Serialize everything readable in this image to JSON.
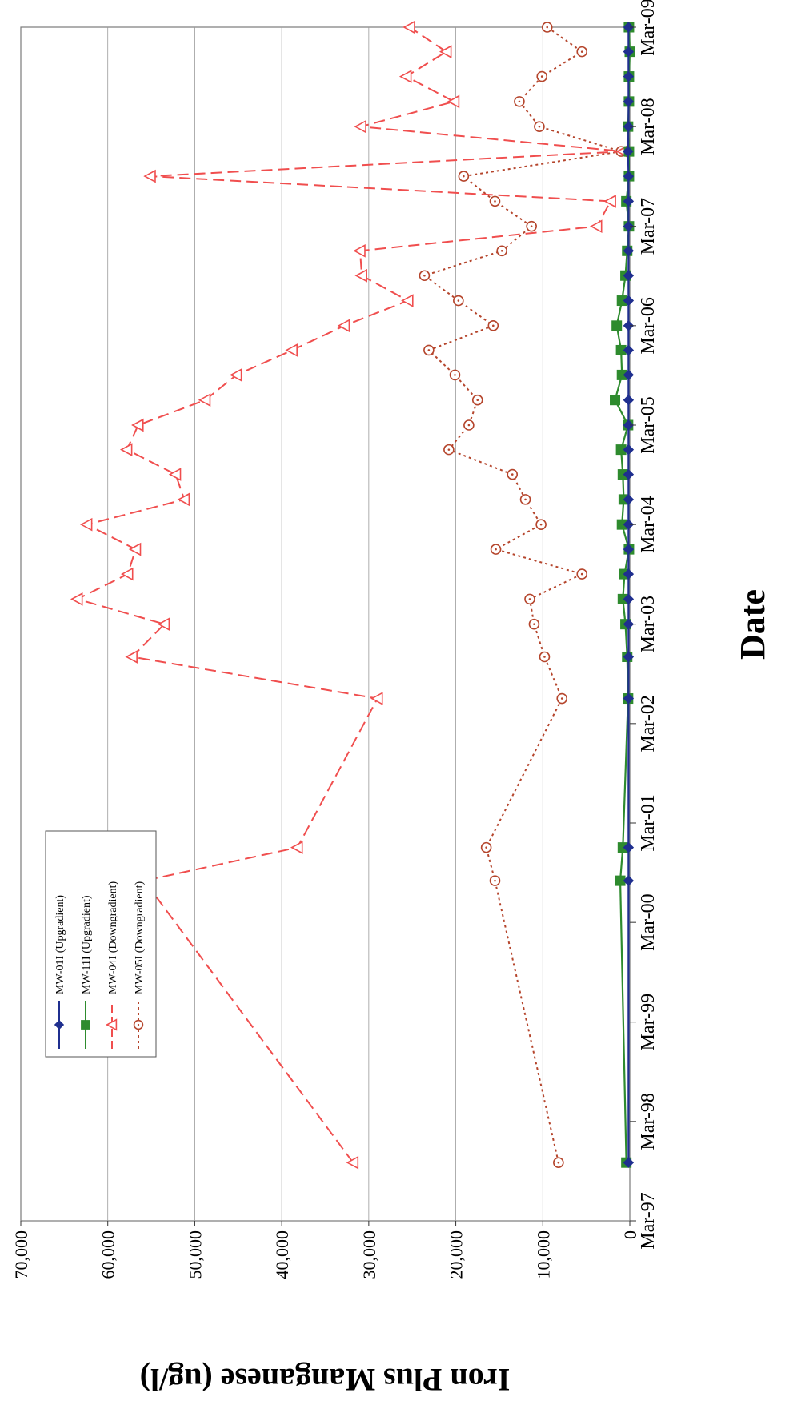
{
  "chart_data": {
    "type": "line",
    "title": "",
    "xlabel": "Date",
    "ylabel": "Iron Plus Manganese (ug/l)",
    "orientation": "rotated-90-clockwise",
    "ylim": [
      0,
      70000
    ],
    "y_ticks": [
      0,
      10000,
      20000,
      30000,
      40000,
      50000,
      60000,
      70000
    ],
    "y_tick_labels": [
      "0",
      "10,000",
      "20,000",
      "30,000",
      "40,000",
      "50,000",
      "60,000",
      "70,000"
    ],
    "xlim": [
      "1997-03-01",
      "2009-03-01"
    ],
    "x_ticks": [
      "1997-03-01",
      "1998-03-01",
      "1999-03-01",
      "2000-03-01",
      "2001-03-01",
      "2002-03-01",
      "2003-03-01",
      "2004-03-01",
      "2005-03-01",
      "2006-03-01",
      "2007-03-01",
      "2008-03-01",
      "2009-03-01"
    ],
    "x_tick_labels": [
      "Mar-97",
      "Mar-98",
      "Mar-99",
      "Mar-00",
      "Mar-01",
      "Mar-02",
      "Mar-03",
      "Mar-04",
      "Mar-05",
      "Mar-06",
      "Mar-07",
      "Mar-08",
      "Mar-09"
    ],
    "grid": "horizontal",
    "legend_position": "lower-left",
    "series": [
      {
        "name": "MW-01I (Upgradient)",
        "color": "#1f2f8f",
        "line": "solid",
        "marker": "diamond",
        "points": [
          [
            "1997-10-01",
            150
          ],
          [
            "2000-08-01",
            150
          ],
          [
            "2000-12-01",
            150
          ],
          [
            "2002-06-01",
            150
          ],
          [
            "2002-11-01",
            150
          ],
          [
            "2003-03-01",
            150
          ],
          [
            "2003-06-01",
            150
          ],
          [
            "2003-09-01",
            150
          ],
          [
            "2003-12-01",
            150
          ],
          [
            "2004-03-01",
            150
          ],
          [
            "2004-06-01",
            150
          ],
          [
            "2004-09-01",
            150
          ],
          [
            "2004-12-01",
            150
          ],
          [
            "2005-03-01",
            150
          ],
          [
            "2005-06-01",
            150
          ],
          [
            "2005-09-01",
            150
          ],
          [
            "2005-12-01",
            150
          ],
          [
            "2006-03-01",
            150
          ],
          [
            "2006-06-01",
            150
          ],
          [
            "2006-09-01",
            150
          ],
          [
            "2006-12-01",
            150
          ],
          [
            "2007-03-01",
            150
          ],
          [
            "2007-06-01",
            150
          ],
          [
            "2007-09-01",
            150
          ],
          [
            "2007-12-01",
            200
          ],
          [
            "2008-03-01",
            150
          ],
          [
            "2008-06-01",
            150
          ],
          [
            "2008-09-01",
            150
          ],
          [
            "2008-12-01",
            150
          ],
          [
            "2009-03-01",
            150
          ]
        ]
      },
      {
        "name": "MW-11I (Upgradient)",
        "color": "#2e8b2e",
        "line": "solid",
        "marker": "square",
        "points": [
          [
            "1997-10-01",
            400
          ],
          [
            "2000-08-01",
            1100
          ],
          [
            "2000-12-01",
            800
          ],
          [
            "2002-06-01",
            200
          ],
          [
            "2002-11-01",
            300
          ],
          [
            "2003-03-01",
            500
          ],
          [
            "2003-06-01",
            800
          ],
          [
            "2003-09-01",
            600
          ],
          [
            "2003-12-01",
            100
          ],
          [
            "2004-03-01",
            900
          ],
          [
            "2004-06-01",
            700
          ],
          [
            "2004-09-01",
            800
          ],
          [
            "2004-12-01",
            1000
          ],
          [
            "2005-03-01",
            200
          ],
          [
            "2005-06-01",
            1700
          ],
          [
            "2005-09-01",
            900
          ],
          [
            "2005-12-01",
            1000
          ],
          [
            "2006-03-01",
            1500
          ],
          [
            "2006-06-01",
            900
          ],
          [
            "2006-09-01",
            500
          ],
          [
            "2006-12-01",
            300
          ],
          [
            "2007-03-01",
            100
          ],
          [
            "2007-06-01",
            400
          ],
          [
            "2007-09-01",
            100
          ],
          [
            "2007-12-01",
            100
          ],
          [
            "2008-03-01",
            200
          ],
          [
            "2008-06-01",
            100
          ],
          [
            "2008-09-01",
            100
          ],
          [
            "2008-12-01",
            0
          ],
          [
            "2009-03-01",
            100
          ]
        ]
      },
      {
        "name": "MW-04I (Downgradient)",
        "color": "#f04e4e",
        "line": "dashed",
        "marker": "triangle",
        "points": [
          [
            "1997-10-01",
            31800
          ],
          [
            "2000-08-01",
            55800
          ],
          [
            "2000-12-01",
            38200
          ],
          [
            "2002-06-01",
            29000
          ],
          [
            "2002-11-01",
            57200
          ],
          [
            "2003-03-01",
            53500
          ],
          [
            "2003-06-01",
            63500
          ],
          [
            "2003-09-01",
            57700
          ],
          [
            "2003-12-01",
            56800
          ],
          [
            "2004-03-01",
            62400
          ],
          [
            "2004-06-01",
            51200
          ],
          [
            "2004-09-01",
            52200
          ],
          [
            "2004-12-01",
            57800
          ],
          [
            "2005-03-01",
            56500
          ],
          [
            "2005-06-01",
            48800
          ],
          [
            "2005-09-01",
            45200
          ],
          [
            "2005-12-01",
            38800
          ],
          [
            "2006-03-01",
            32800
          ],
          [
            "2006-06-01",
            25500
          ],
          [
            "2006-09-01",
            30800
          ],
          [
            "2006-12-01",
            31000
          ],
          [
            "2007-03-01",
            3800
          ],
          [
            "2007-06-01",
            2200
          ],
          [
            "2007-09-01",
            55100
          ],
          [
            "2007-12-01",
            800
          ],
          [
            "2008-03-01",
            30900
          ],
          [
            "2008-06-01",
            20200
          ],
          [
            "2008-09-01",
            25700
          ],
          [
            "2008-12-01",
            21100
          ],
          [
            "2009-03-01",
            25300
          ]
        ]
      },
      {
        "name": "MW-05I (Downgradient)",
        "color": "#b5452c",
        "line": "dotted",
        "marker": "circle",
        "points": [
          [
            "1997-10-01",
            8200
          ],
          [
            "2000-08-01",
            15500
          ],
          [
            "2000-12-01",
            16500
          ],
          [
            "2002-06-01",
            7800
          ],
          [
            "2002-11-01",
            9800
          ],
          [
            "2003-03-01",
            11000
          ],
          [
            "2003-06-01",
            11500
          ],
          [
            "2003-09-01",
            5500
          ],
          [
            "2003-12-01",
            15400
          ],
          [
            "2004-03-01",
            10200
          ],
          [
            "2004-06-01",
            12000
          ],
          [
            "2004-09-01",
            13500
          ],
          [
            "2004-12-01",
            20800
          ],
          [
            "2005-03-01",
            18500
          ],
          [
            "2005-06-01",
            17500
          ],
          [
            "2005-09-01",
            20100
          ],
          [
            "2005-12-01",
            23100
          ],
          [
            "2006-03-01",
            15700
          ],
          [
            "2006-06-01",
            19700
          ],
          [
            "2006-09-01",
            23600
          ],
          [
            "2006-12-01",
            14700
          ],
          [
            "2007-03-01",
            11300
          ],
          [
            "2007-06-01",
            15500
          ],
          [
            "2007-09-01",
            19100
          ],
          [
            "2007-12-01",
            1000
          ],
          [
            "2008-03-01",
            10400
          ],
          [
            "2008-06-01",
            12700
          ],
          [
            "2008-09-01",
            10100
          ],
          [
            "2008-12-01",
            5500
          ],
          [
            "2009-03-01",
            9500
          ]
        ]
      }
    ]
  }
}
